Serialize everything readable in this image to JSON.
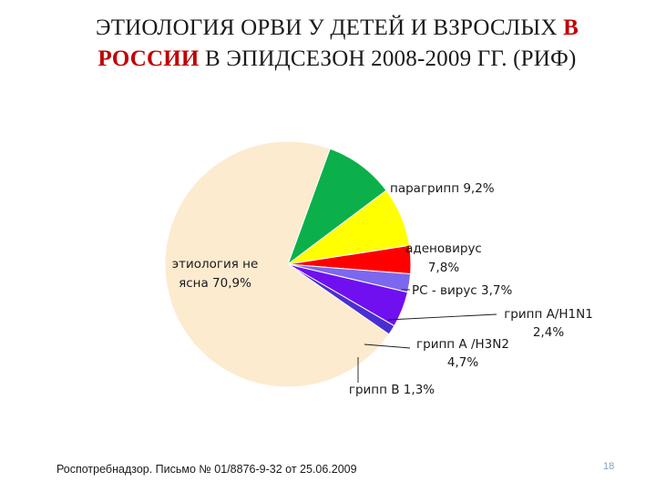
{
  "title": {
    "part1": "ЭТИОЛОГИЯ ОРВИ У ДЕТЕЙ И ВЗРОСЛЫХ",
    "part2": "В",
    "part3": "РОССИИ",
    "part4": "В ЭПИДСЕЗОН  2008-2009 ГГ. (РИФ)"
  },
  "chart_data": {
    "type": "pie",
    "title": "",
    "slices": [
      {
        "name": "парагрипп",
        "value": 9.2,
        "label_lines": [
          "парагрипп  9,2%"
        ],
        "color": "#0bb04a"
      },
      {
        "name": "аденовирус",
        "value": 7.8,
        "label_lines": [
          "аденовирус",
          "7,8%"
        ],
        "color": "#ffff00"
      },
      {
        "name": "РС - вирус",
        "value": 3.7,
        "label_lines": [
          "РС - вирус 3,7%"
        ],
        "color": "#ff0000"
      },
      {
        "name": "грипп А/H1N1",
        "value": 2.4,
        "label_lines": [
          "грипп А/H1N1",
          "2,4%"
        ],
        "color": "#7b68ee"
      },
      {
        "name": "грипп А /H3N2",
        "value": 4.7,
        "label_lines": [
          "грипп А /H3N2",
          "4,7%"
        ],
        "color": "#7010f0"
      },
      {
        "name": "грипп В",
        "value": 1.3,
        "label_lines": [
          "грипп В  1,3%"
        ],
        "color": "#4a2fd0"
      },
      {
        "name": "этиология не ясна",
        "value": 70.9,
        "label_lines": [
          "этиология не",
          "ясна 70,9%"
        ],
        "color": "#fdebd0"
      }
    ]
  },
  "footer": {
    "source": "Роспотребнадзор. Письмо № 01/8876-9-32 от 25.06.2009",
    "page_number": "18"
  }
}
